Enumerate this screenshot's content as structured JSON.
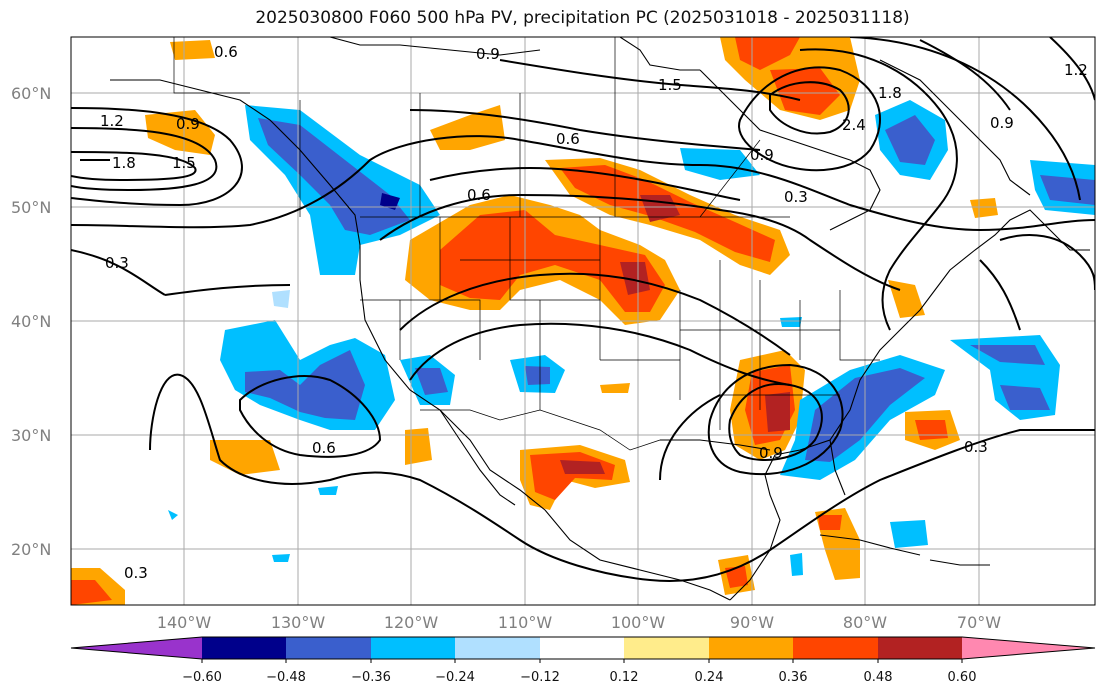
{
  "title": "2025030800 F060 500 hPa PV, precipitation PC (2025031018 - 2025031118)",
  "lat_labels": [
    "60°N",
    "50°N",
    "40°N",
    "30°N",
    "20°N"
  ],
  "lon_labels": [
    "140°W",
    "130°W",
    "120°W",
    "110°W",
    "100°W",
    "90°W",
    "80°W",
    "70°W"
  ],
  "colorbar": {
    "tick_labels": [
      "−0.60",
      "−0.48",
      "−0.36",
      "−0.24",
      "−0.12",
      "0.12",
      "0.24",
      "0.36",
      "0.48",
      "0.60"
    ],
    "colors": [
      "#9933cc",
      "#00008b",
      "#3a5fcd",
      "#00bfff",
      "#b0e0ff",
      "#ffffff",
      "#ffec8b",
      "#ffa500",
      "#ff4500",
      "#b22222",
      "#ff88b0"
    ]
  },
  "contour_labels": [
    "0.6",
    "0.9",
    "1.5",
    "1.2",
    "0.9",
    "1.8",
    "1.5",
    "0.6",
    "0.9",
    "0.3",
    "0.6",
    "0.3",
    "0.6",
    "0.9",
    "0.3",
    "0.3",
    "1.2",
    "0.9",
    "2.4",
    "1.8"
  ]
}
